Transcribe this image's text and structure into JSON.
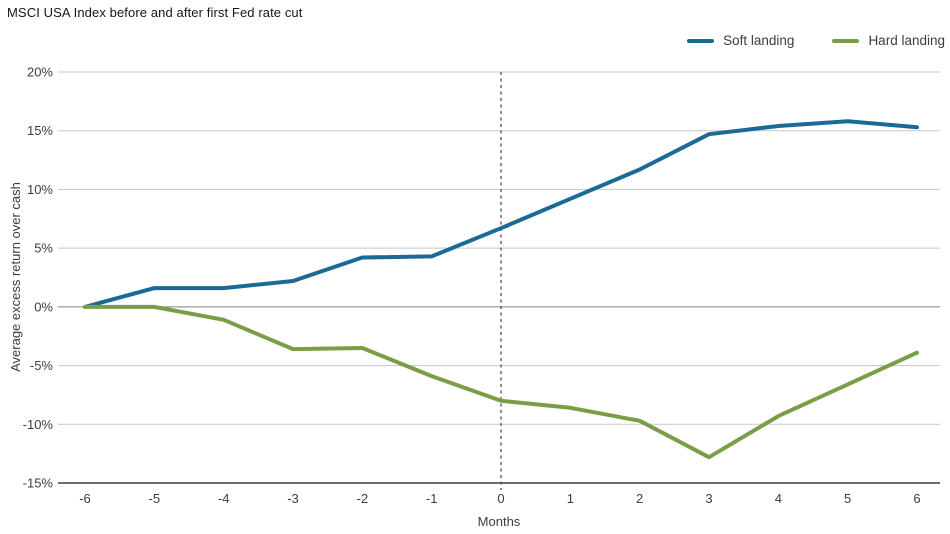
{
  "header": {
    "title": "MSCI USA Index before and after first Fed rate cut"
  },
  "chart_data": {
    "type": "line",
    "title": "MSCI USA Index before and after first Fed rate cut",
    "xlabel": "Months",
    "ylabel": "Average excess return over cash",
    "x": [
      -6,
      -5,
      -4,
      -3,
      -2,
      -1,
      0,
      1,
      2,
      3,
      4,
      5,
      6
    ],
    "xtick_labels": [
      "-6",
      "-5",
      "-4",
      "-3",
      "-2",
      "-1",
      "0",
      "1",
      "2",
      "3",
      "4",
      "5",
      "6"
    ],
    "ylim": [
      -15,
      20
    ],
    "ytick_step": 5,
    "ytick_labels": [
      "20%",
      "15%",
      "10%",
      "5%",
      "0%",
      "-5%",
      "-10%",
      "-15%"
    ],
    "grid": "horizontal",
    "legend_position": "top-right",
    "vline": {
      "x": 0,
      "style": "dashed",
      "color": "#5a5a5a"
    },
    "grid_color": "#c7c7c7",
    "zero_line_color": "#7f7f7f",
    "axis_color": "#3f3f3f",
    "series": [
      {
        "name": "Soft landing",
        "color": "#1b6a96",
        "values": [
          0.0,
          1.6,
          1.6,
          2.2,
          4.2,
          4.3,
          6.7,
          9.2,
          11.7,
          14.7,
          15.4,
          15.8,
          15.3
        ]
      },
      {
        "name": "Hard landing",
        "color": "#7a9e45",
        "values": [
          0.0,
          0.0,
          -1.1,
          -3.6,
          -3.5,
          -5.9,
          -8.0,
          -8.6,
          -9.7,
          -12.8,
          -9.3,
          -6.6,
          -3.9
        ]
      }
    ]
  }
}
